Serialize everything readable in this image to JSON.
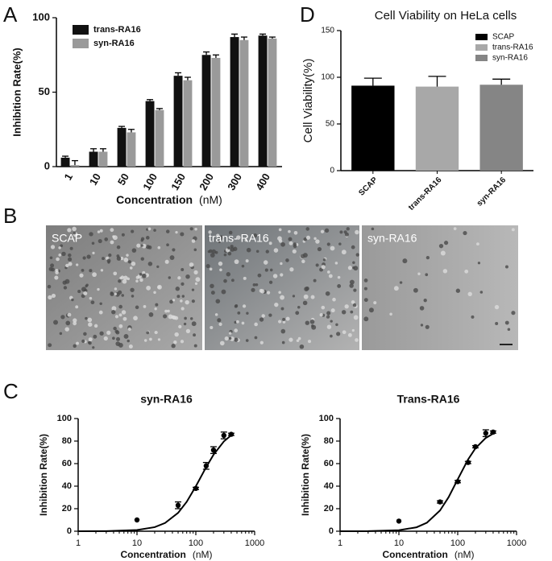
{
  "panel_labels": [
    "A",
    "B",
    "C",
    "D"
  ],
  "images": {
    "labels": [
      "SCAP",
      "trans- RA16",
      "syn-RA16"
    ]
  },
  "chart_data": [
    {
      "type": "bar",
      "panel": "A",
      "categories": [
        "1",
        "10",
        "50",
        "100",
        "150",
        "200",
        "300",
        "400"
      ],
      "series": [
        {
          "name": "trans-RA16",
          "color": "#111111",
          "values": [
            6,
            10,
            26,
            44,
            61,
            75,
            87,
            88
          ],
          "errors": [
            1,
            2,
            1,
            1,
            2,
            2,
            2,
            1
          ]
        },
        {
          "name": "syn-RA16",
          "color": "#9a9a9a",
          "values": [
            1,
            10,
            23,
            38,
            58,
            73,
            85,
            86
          ],
          "errors": [
            3,
            2,
            2,
            1,
            2,
            2,
            2,
            1
          ]
        }
      ],
      "ylim": [
        0,
        100
      ],
      "yticks": [
        0,
        50,
        100
      ],
      "ylabel": "Inhibition Rate(%)",
      "xlabel": "Concentration",
      "xlabel_unit": "(nM)",
      "legend": "upper left"
    },
    {
      "type": "bar",
      "panel": "D",
      "title": "Cell Viability on HeLa cells",
      "categories": [
        "SCAP",
        "trans-RA16",
        "syn-RA16"
      ],
      "values": [
        91,
        90,
        92
      ],
      "errors": [
        8,
        11,
        6
      ],
      "colors": [
        "#000000",
        "#a8a8a8",
        "#858585"
      ],
      "ylim": [
        0,
        150
      ],
      "yticks": [
        0,
        50,
        100,
        150
      ],
      "ylabel": "Cell Viability(%)",
      "legend": "upper right"
    },
    {
      "type": "scatter",
      "panel": "C",
      "title": "syn-RA16",
      "x": [
        10,
        50,
        100,
        150,
        200,
        300,
        400
      ],
      "values": [
        10,
        23,
        38,
        58,
        72,
        85,
        86
      ],
      "errors": [
        0,
        3,
        1,
        3,
        3,
        3,
        1
      ],
      "fit": {
        "x": [
          1,
          3,
          10,
          20,
          30,
          50,
          70,
          100,
          150,
          200,
          300,
          400
        ],
        "values": [
          0,
          0.1,
          1.1,
          3.6,
          7.3,
          16.3,
          26.1,
          39.8,
          56.9,
          67.9,
          79.7,
          85.2
        ]
      },
      "log_x": true,
      "xlim": [
        1,
        1000
      ],
      "xticks": [
        1,
        10,
        100,
        1000
      ],
      "ylim": [
        0,
        100
      ],
      "yticks": [
        0,
        20,
        40,
        60,
        80,
        100
      ],
      "ylabel": "Inhibition Rate(%)",
      "xlabel": "Concentration",
      "xlabel_unit": "(nM)"
    },
    {
      "type": "scatter",
      "panel": "C",
      "title": "Trans-RA16",
      "x": [
        10,
        50,
        100,
        150,
        200,
        300,
        400
      ],
      "values": [
        9,
        26,
        44,
        61,
        75,
        87,
        88
      ],
      "errors": [
        0,
        1,
        1,
        1,
        1,
        3,
        1
      ],
      "fit": {
        "x": [
          1,
          3,
          10,
          20,
          30,
          50,
          70,
          100,
          150,
          200,
          300,
          400
        ],
        "values": [
          0,
          0.1,
          0.9,
          3.5,
          7.6,
          18.4,
          30.2,
          46,
          63.7,
          73.6,
          82.8,
          86.6
        ]
      },
      "log_x": true,
      "xlim": [
        1,
        1000
      ],
      "xticks": [
        1,
        10,
        100,
        1000
      ],
      "ylim": [
        0,
        100
      ],
      "yticks": [
        0,
        20,
        40,
        60,
        80,
        100
      ],
      "ylabel": "Inhibition Rate(%)",
      "xlabel": "Concentration",
      "xlabel_unit": "(nM)"
    }
  ]
}
